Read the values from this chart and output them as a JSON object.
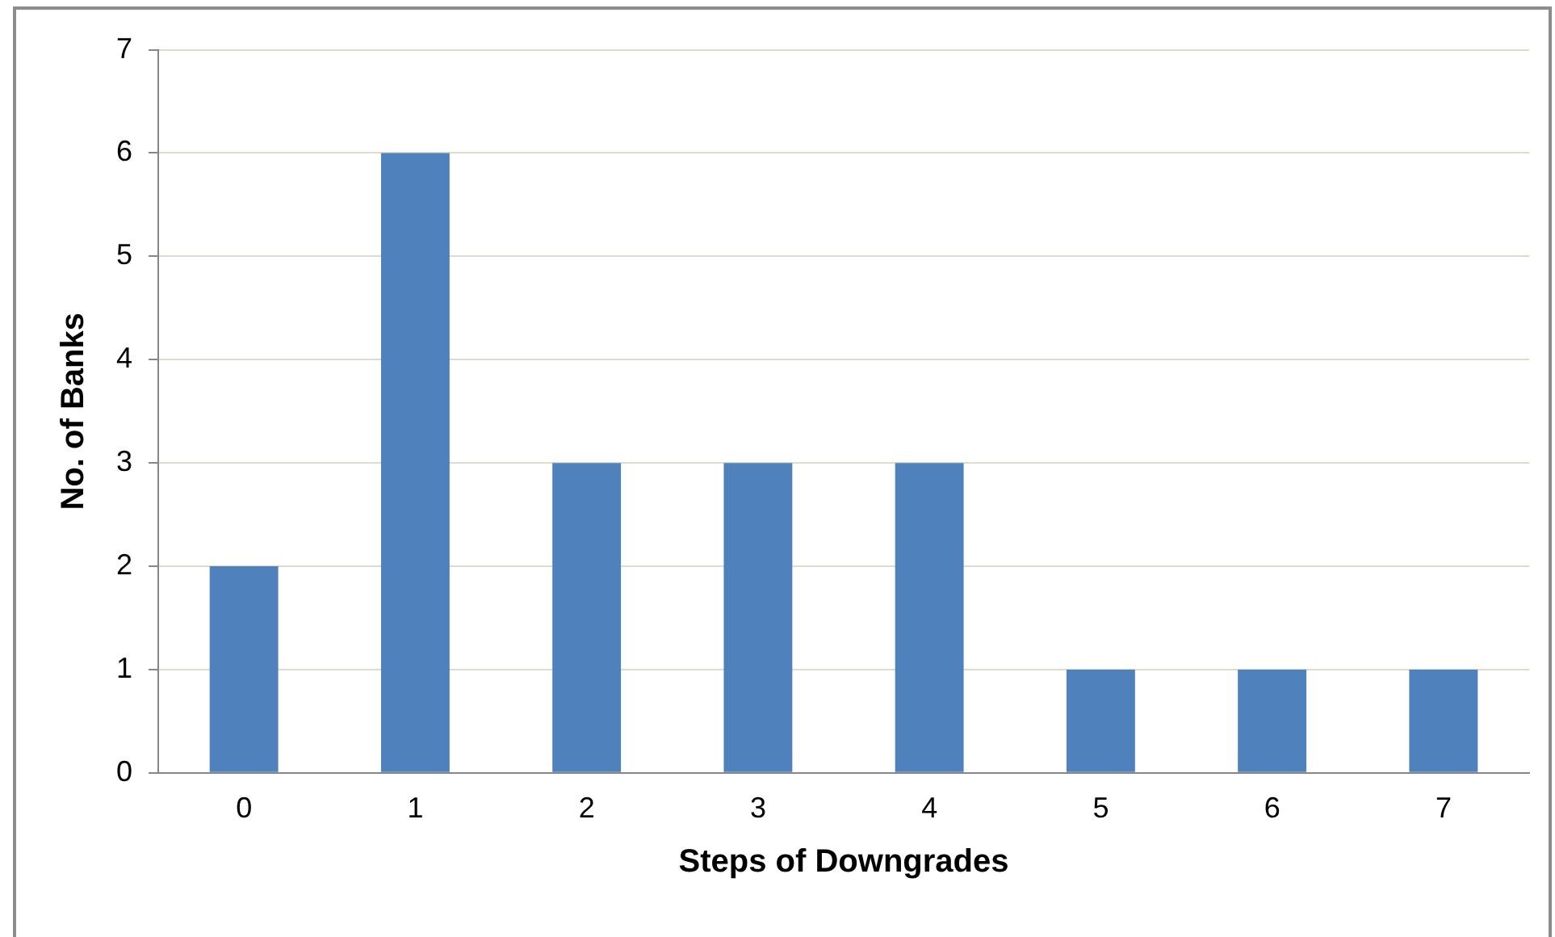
{
  "chart_data": {
    "type": "bar",
    "xlabel": "Steps of Downgrades",
    "ylabel": "No. of Banks",
    "categories": [
      "0",
      "1",
      "2",
      "3",
      "4",
      "5",
      "6",
      "7"
    ],
    "values": [
      2,
      6,
      3,
      3,
      3,
      1,
      1,
      1
    ],
    "color": "#4f81bd",
    "ylim": [
      0,
      7
    ],
    "yticks": [
      0,
      1,
      2,
      3,
      4,
      5,
      6,
      7
    ],
    "grid": "y",
    "legend": false
  }
}
